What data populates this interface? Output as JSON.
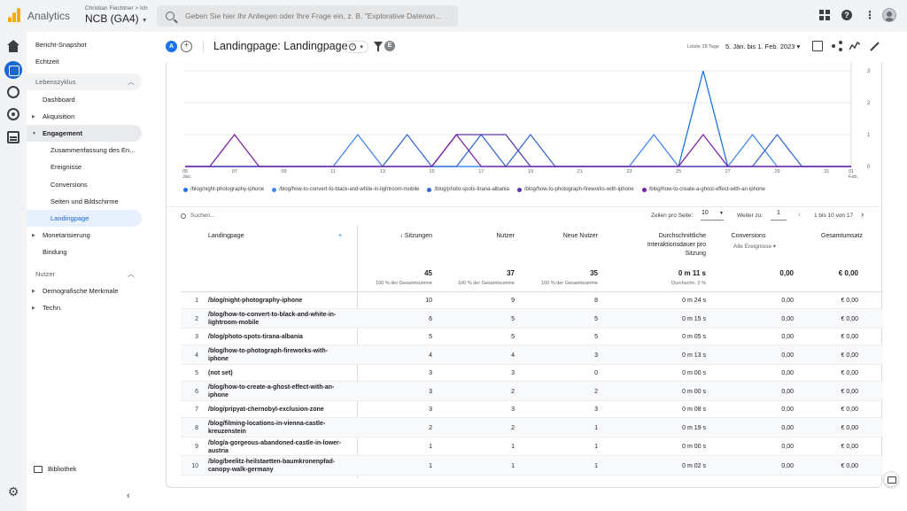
{
  "app": {
    "brand": "Analytics",
    "account_path": "Christian Feichtner > Ich",
    "property": "NCB (GA4)",
    "search_placeholder": "Geben Sie hier Ihr Anliegen oder Ihre Frage ein, z. B. \"Explorative Datenan...",
    "icons": [
      "apps-grid-icon",
      "help-icon",
      "more-vert-icon",
      "avatar"
    ]
  },
  "sidenav": {
    "items_top": [
      "Bericht-Snapshot",
      "Echtzeit"
    ],
    "lebenszyklus": "Lebenszyklus",
    "dashboard": "Dashboard",
    "akquisition": "Akquisition",
    "engagement": "Engagement",
    "engagement_children": [
      "Zusammenfassung des En...",
      "Ereignisse",
      "Conversions",
      "Seiten und Bildschirme",
      "Landingpage"
    ],
    "monetarisierung": "Monetarisierung",
    "bindung": "Bindung",
    "nutzer": "Nutzer",
    "demografie": "Demografische Merkmale",
    "techn": "Techn.",
    "bibliothek": "Bibliothek",
    "collapse": "‹"
  },
  "header": {
    "badge_a": "A",
    "title": "Landingpage: Landingpage",
    "badge_e": "E",
    "date_label": "Letzte 28 Tage",
    "date_range": "5. Jän. bis 1. Feb. 2023 ▾"
  },
  "chart_data": {
    "type": "line",
    "x": [
      "05 Jän.",
      "06",
      "07",
      "08",
      "09",
      "10",
      "11",
      "12",
      "13",
      "14",
      "15",
      "16",
      "17",
      "18",
      "19",
      "20",
      "21",
      "22",
      "23",
      "24",
      "25",
      "26",
      "27",
      "28",
      "29",
      "30",
      "31",
      "01 Feb."
    ],
    "x_tick_labels": [
      "05",
      "Jän.",
      "07",
      "09",
      "11",
      "13",
      "15",
      "17",
      "19",
      "21",
      "23",
      "25",
      "27",
      "29",
      "31",
      "01",
      "Feb."
    ],
    "y_tick_labels": [
      "3",
      "2",
      "1",
      "0"
    ],
    "ylim": [
      0,
      3
    ],
    "grid": true,
    "legend_position": "bottom-left",
    "series": [
      {
        "name": "/blog/night-photography-iphone",
        "color": "#1a73e8",
        "values": [
          0,
          0,
          0,
          0,
          0,
          0,
          0,
          0,
          0,
          0,
          0,
          0,
          0,
          0,
          0,
          0,
          0,
          0,
          0,
          0,
          0,
          3,
          0,
          0,
          0,
          0,
          0,
          0
        ]
      },
      {
        "name": "/blog/how-to-convert-to-black-and-white-in-lightroom-mobile",
        "color": "#4285f4",
        "values": [
          0,
          0,
          0,
          0,
          0,
          0,
          0,
          1,
          0,
          0,
          0,
          0,
          0,
          0,
          0,
          0,
          0,
          0,
          0,
          1,
          0,
          0,
          0,
          1,
          0,
          0,
          0,
          0
        ]
      },
      {
        "name": "/blog/photo-spots-tirana-albania",
        "color": "#3367d6",
        "values": [
          0,
          0,
          0,
          0,
          0,
          0,
          0,
          0,
          0,
          1,
          0,
          0,
          1,
          0,
          1,
          0,
          0,
          0,
          0,
          0,
          0,
          0,
          0,
          0,
          1,
          0,
          0,
          0
        ]
      },
      {
        "name": "/blog/how-to-photograph-fireworks-with-iphone",
        "color": "#5e35b1",
        "values": [
          0,
          0,
          0,
          0,
          0,
          0,
          0,
          0,
          0,
          0,
          0,
          1,
          1,
          1,
          0,
          0,
          0,
          0,
          0,
          0,
          0,
          0,
          0,
          0,
          0,
          0,
          0,
          0
        ]
      },
      {
        "name": "/blog/how-to-create-a-ghost-effect-with-an-iphone",
        "color": "#7b1fa2",
        "values": [
          0,
          0,
          1,
          0,
          0,
          0,
          0,
          0,
          0,
          0,
          0,
          1,
          0,
          0,
          0,
          0,
          0,
          0,
          0,
          0,
          0,
          1,
          0,
          0,
          0,
          0,
          0,
          0
        ]
      }
    ]
  },
  "controls": {
    "search_placeholder": "Suchen...",
    "rows_label": "Zeilen pro Seite:",
    "rows_value": "10",
    "goto_label": "Weiter zu:",
    "goto_value": "1",
    "page_info": "1 bis 10 von 17"
  },
  "table": {
    "headers": {
      "landingpage": "Landingpage",
      "sitzungen": "↓ Sitzungen",
      "nutzer": "Nutzer",
      "neue_nutzer": "Neue Nutzer",
      "dauer_1": "Durchschnittliche",
      "dauer_2": "Interaktionsdauer pro",
      "dauer_3": "Sitzung",
      "conversions": "Conversions",
      "conversions_sub": "Alle Ereignisse ▾",
      "umsatz": "Gesamtumsatz"
    },
    "totals": {
      "sitzungen": "45",
      "sitzungen_sub": "100 % der Gesamtsumme",
      "nutzer": "37",
      "nutzer_sub": "100 % der Gesamtsumme",
      "neue_nutzer": "35",
      "neue_nutzer_sub": "100 % der Gesamtsumme",
      "dauer": "0 m 11 s",
      "dauer_sub": "Durchschn. 0 %",
      "conversions": "0,00",
      "umsatz": "€ 0,00"
    },
    "rows": [
      {
        "idx": "1",
        "l1": "/blog/night-photography-iphone",
        "l2": "",
        "s": "10",
        "n": "9",
        "nn": "8",
        "d": "0 m 24 s",
        "c": "0,00",
        "u": "€ 0,00"
      },
      {
        "idx": "2",
        "l1": "/blog/how-to-convert-to-black-and-white-in-",
        "l2": "lightroom-mobile",
        "s": "6",
        "n": "5",
        "nn": "5",
        "d": "0 m 15 s",
        "c": "0,00",
        "u": "€ 0,00"
      },
      {
        "idx": "3",
        "l1": "/blog/photo-spots-tirana-albania",
        "l2": "",
        "s": "5",
        "n": "5",
        "nn": "5",
        "d": "0 m 05 s",
        "c": "0,00",
        "u": "€ 0,00"
      },
      {
        "idx": "4",
        "l1": "/blog/how-to-photograph-fireworks-with-",
        "l2": "iphone",
        "s": "4",
        "n": "4",
        "nn": "3",
        "d": "0 m 13 s",
        "c": "0,00",
        "u": "€ 0,00"
      },
      {
        "idx": "5",
        "l1": "(not set)",
        "l2": "",
        "s": "3",
        "n": "3",
        "nn": "0",
        "d": "0 m 00 s",
        "c": "0,00",
        "u": "€ 0,00"
      },
      {
        "idx": "6",
        "l1": "/blog/how-to-create-a-ghost-effect-with-an-",
        "l2": "iphone",
        "s": "3",
        "n": "2",
        "nn": "2",
        "d": "0 m 00 s",
        "c": "0,00",
        "u": "€ 0,00"
      },
      {
        "idx": "7",
        "l1": "/blog/pripyat-chernobyl-exclusion-zone",
        "l2": "",
        "s": "3",
        "n": "3",
        "nn": "3",
        "d": "0 m 08 s",
        "c": "0,00",
        "u": "€ 0,00"
      },
      {
        "idx": "8",
        "l1": "/blog/filming-locations-in-vienna-castle-",
        "l2": "kreuzenstein",
        "s": "2",
        "n": "2",
        "nn": "1",
        "d": "0 m 19 s",
        "c": "0,00",
        "u": "€ 0,00"
      },
      {
        "idx": "9",
        "l1": "/blog/a-gorgeous-abandoned-castle-in-lower-",
        "l2": "austria",
        "s": "1",
        "n": "1",
        "nn": "1",
        "d": "0 m 00 s",
        "c": "0,00",
        "u": "€ 0,00"
      },
      {
        "idx": "10",
        "l1": "/blog/beelitz-heilstaetten-baumkronenpfad-",
        "l2": "canopy-walk-germany",
        "s": "1",
        "n": "1",
        "nn": "1",
        "d": "0 m 02 s",
        "c": "0,00",
        "u": "€ 0,00"
      }
    ]
  }
}
